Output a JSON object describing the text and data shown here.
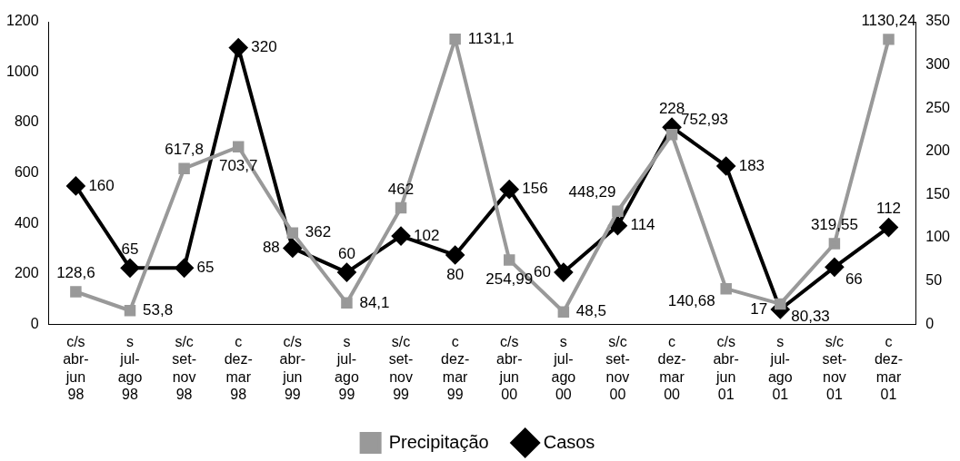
{
  "chart_data": {
    "type": "line",
    "categories": [
      "c/s abr-jun 98",
      "s jul-ago 98",
      "s/c set-nov 98",
      "c dez-mar 98",
      "c/s abr-jun 99",
      "s jul-ago 99",
      "s/c set-nov 99",
      "c dez-mar 99",
      "c/s abr-jun 00",
      "s jul-ago 00",
      "s/c set-nov 00",
      "c dez-mar 00",
      "c/s abr-jun 01",
      "s jul-ago 01",
      "s/c set-nov 01",
      "c dez-mar 01"
    ],
    "series": [
      {
        "name": "Precipitação",
        "color": "#999999",
        "marker": "square",
        "values": [
          128.6,
          53.8,
          617.8,
          703.7,
          362,
          84.1,
          462,
          1131.1,
          254.99,
          48.5,
          448.29,
          752.93,
          140.68,
          80.33,
          319.55,
          1130.24
        ],
        "value_labels": [
          "128,6",
          "53,8",
          "617,8",
          "703,7",
          "362",
          "84,1",
          "462",
          "1131,1",
          "254,99",
          "48,5",
          "448,29",
          "752,93",
          "140,68",
          "80,33",
          "319,55",
          "1130,24"
        ]
      },
      {
        "name": "Casos",
        "color": "#000000",
        "marker": "diamond",
        "axis": "y2",
        "values": [
          160,
          65,
          65,
          320,
          88,
          60,
          102,
          80,
          156,
          60,
          114,
          228,
          183,
          17,
          66,
          112
        ]
      }
    ],
    "ylim": [
      0,
      1200
    ],
    "yticks": [
      0,
      200,
      400,
      600,
      800,
      1000,
      1200
    ],
    "y2lim": [
      0,
      350
    ],
    "y2ticks": [
      0,
      50,
      100,
      150,
      200,
      250,
      300,
      350
    ],
    "data_labels": true,
    "grid": false,
    "legend": "bottom",
    "line_style": "solid"
  }
}
